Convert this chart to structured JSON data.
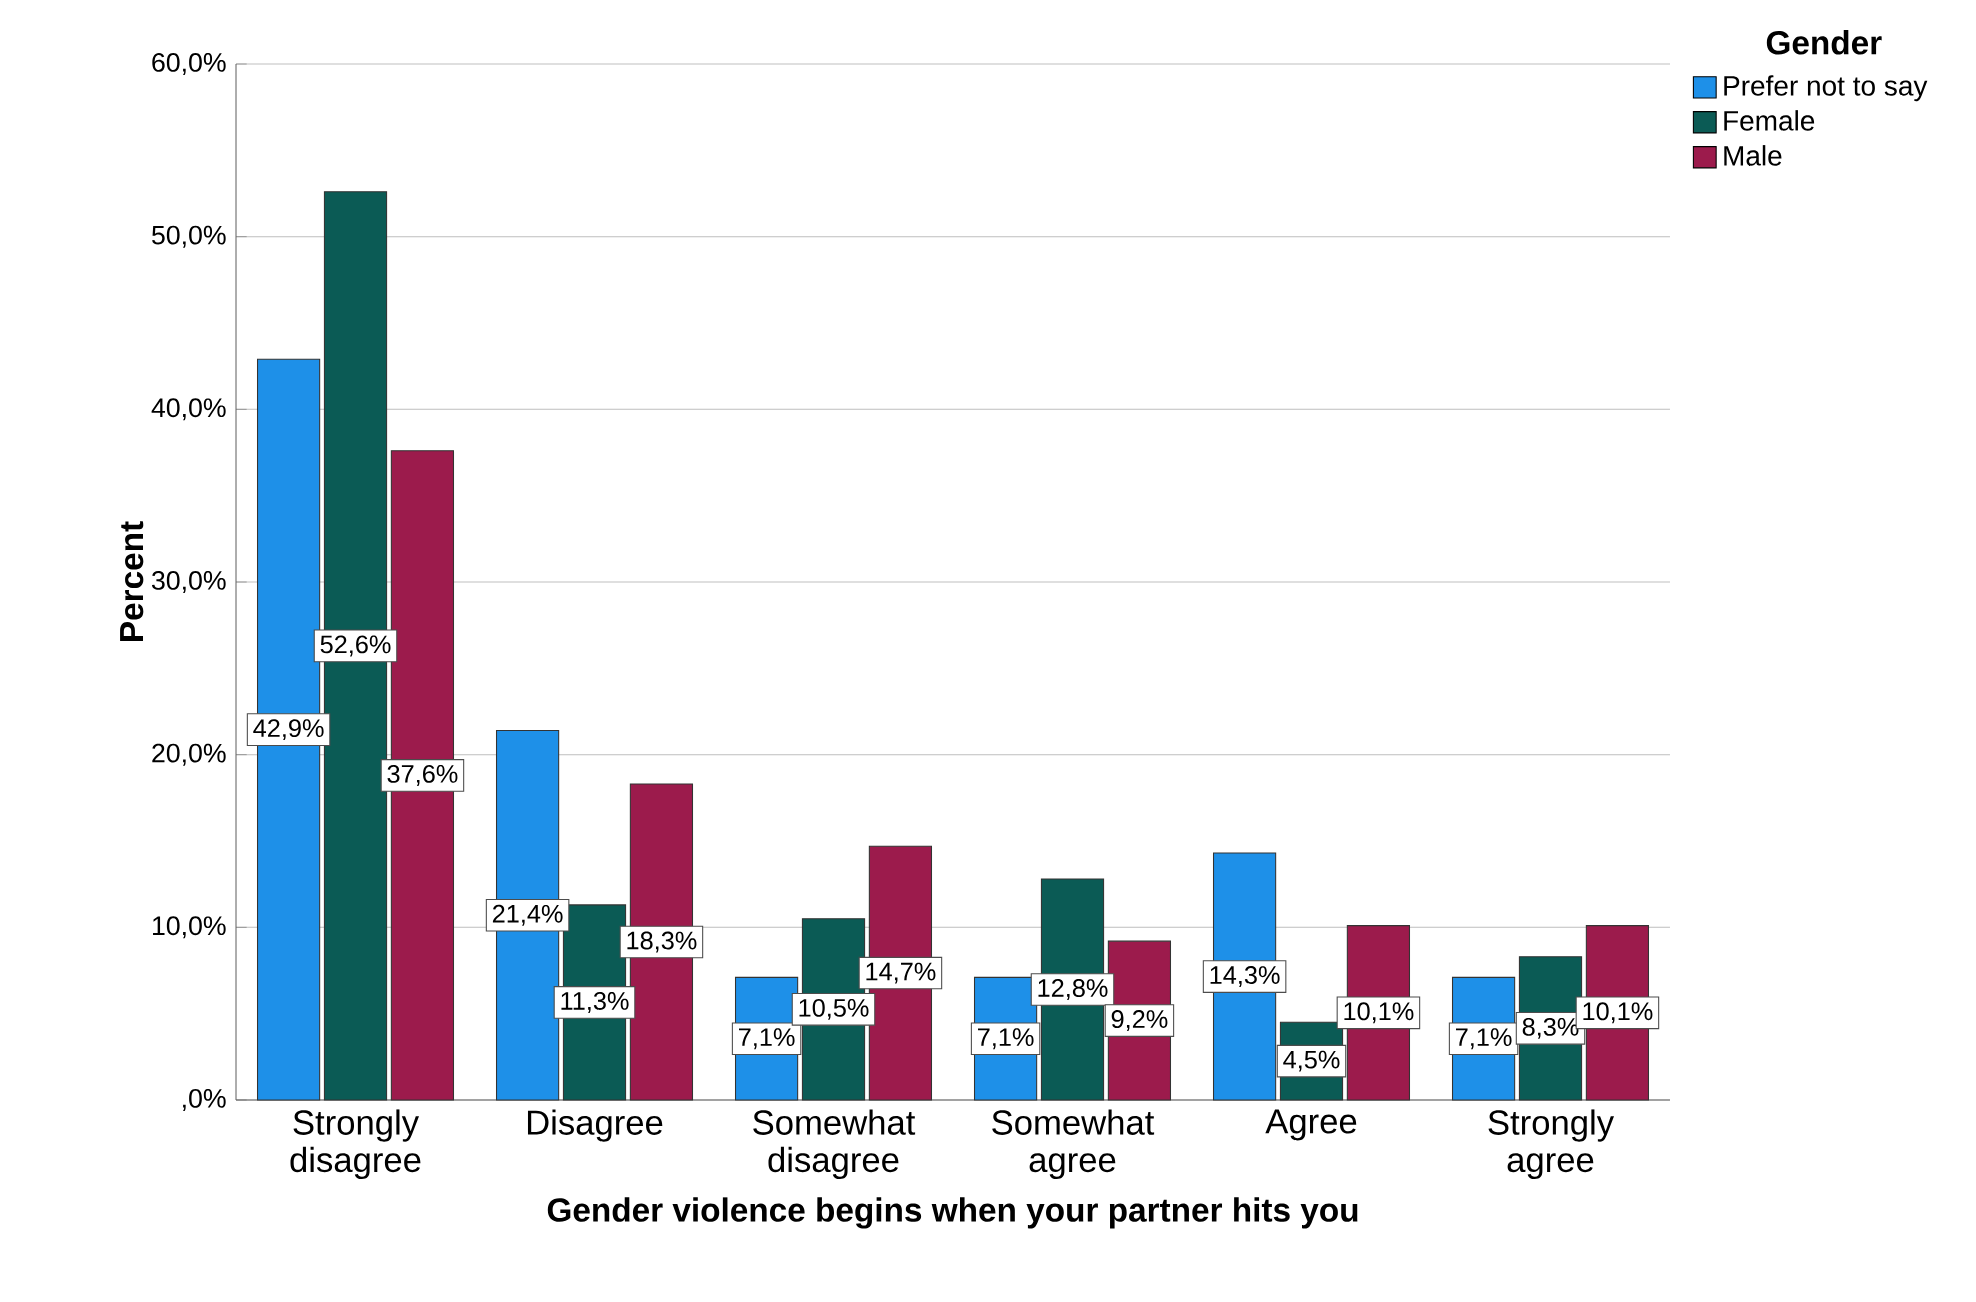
{
  "chart_data": {
    "type": "bar",
    "xlabel": "Gender violence begins when your partner hits you",
    "ylabel": "Percent",
    "legend_title": "Gender",
    "categories": [
      "Strongly disagree",
      "Disagree",
      "Somewhat disagree",
      "Somewhat agree",
      "Agree",
      "Strongly agree"
    ],
    "series": [
      {
        "name": "Prefer not to say",
        "color": "#1e90e8",
        "values": [
          42.9,
          21.4,
          7.1,
          7.1,
          14.3,
          7.1
        ],
        "value_labels": [
          "42,9%",
          "21,4%",
          "7,1%",
          "7,1%",
          "14,3%",
          "7,1%"
        ]
      },
      {
        "name": "Female",
        "color": "#0b5b55",
        "values": [
          52.6,
          11.3,
          10.5,
          12.8,
          4.5,
          8.3
        ],
        "value_labels": [
          "52,6%",
          "11,3%",
          "10,5%",
          "12,8%",
          "4,5%",
          "8,3%"
        ]
      },
      {
        "name": "Male",
        "color": "#9c1b4c",
        "values": [
          37.6,
          18.3,
          14.7,
          9.2,
          10.1,
          10.1
        ],
        "value_labels": [
          "37,6%",
          "18,3%",
          "14,7%",
          "9,2%",
          "10,1%",
          "10,1%"
        ]
      }
    ],
    "ylim": [
      0,
      60
    ],
    "yticks": [
      {
        "value": 0,
        "label": ",0%"
      },
      {
        "value": 10,
        "label": "10,0%"
      },
      {
        "value": 20,
        "label": "20,0%"
      },
      {
        "value": 30,
        "label": "30,0%"
      },
      {
        "value": 40,
        "label": "40,0%"
      },
      {
        "value": 50,
        "label": "50,0%"
      },
      {
        "value": 60,
        "label": "60,0%"
      }
    ],
    "grid": "y",
    "legend": "top right"
  }
}
